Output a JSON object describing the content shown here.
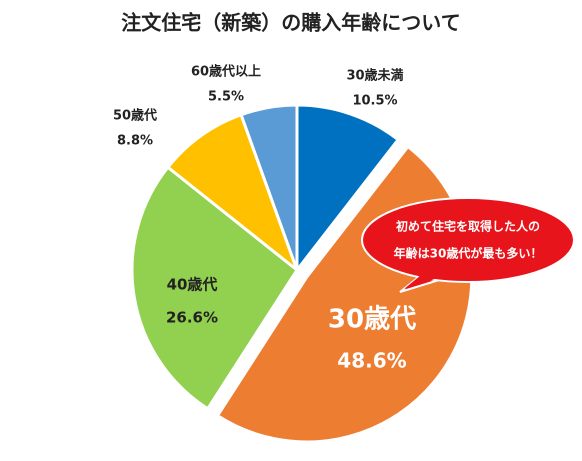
{
  "chart_data": {
    "type": "pie",
    "title": "注文住宅（新築）の購入年齢について",
    "categories": [
      "30歳未満",
      "30歳代",
      "40歳代",
      "50歳代",
      "60歳代以上"
    ],
    "values": [
      10.5,
      48.6,
      26.6,
      8.8,
      5.5
    ],
    "value_labels": [
      "10.5%",
      "48.6%",
      "26.6%",
      "8.8%",
      "5.5%"
    ],
    "colors": [
      "#0070c0",
      "#ed7d31",
      "#92d050",
      "#ffc000",
      "#5b9bd5"
    ],
    "annotation": [
      "初めて住宅を取得した人の",
      "年齢は30歳代が最も多い！"
    ]
  }
}
